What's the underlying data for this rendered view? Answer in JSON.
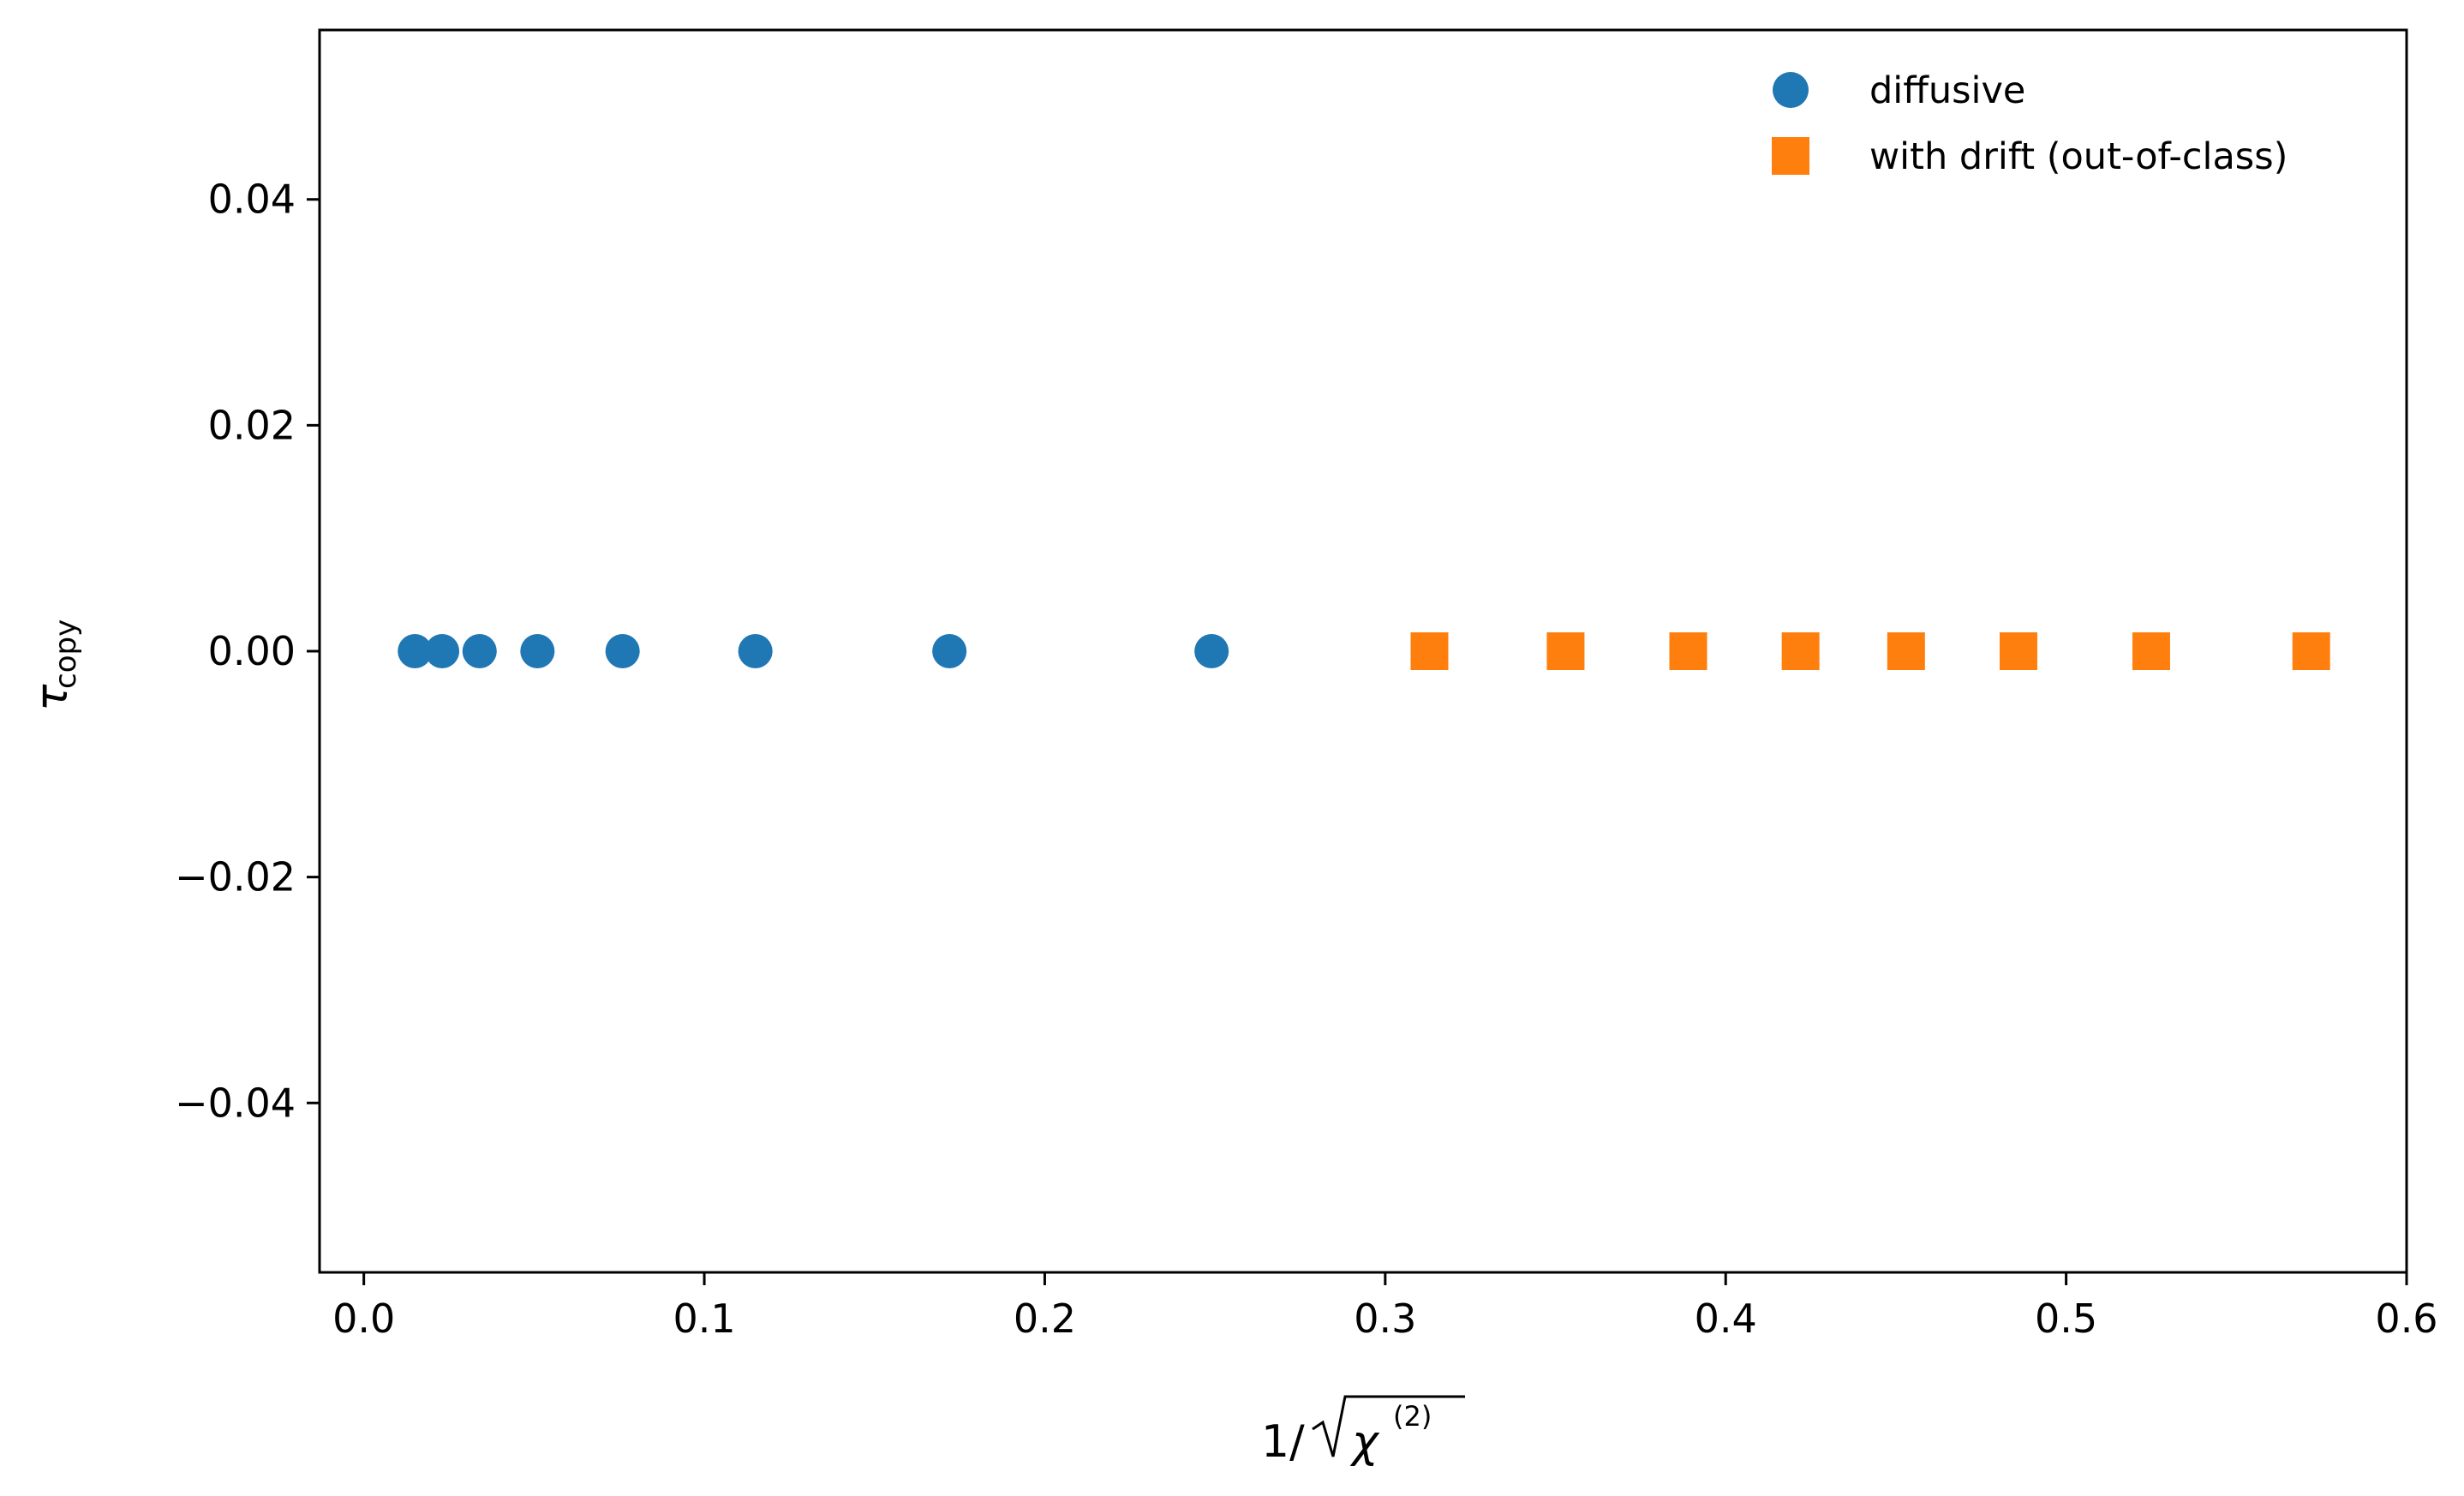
{
  "chart_data": {
    "type": "scatter",
    "title": "",
    "xlabel": "1/√χ⁽²⁾",
    "ylabel": "τ_copy",
    "xlim": [
      -0.013,
      0.6
    ],
    "ylim": [
      -0.055,
      0.055
    ],
    "xticks": [
      0.0,
      0.1,
      0.2,
      0.3,
      0.4,
      0.5,
      0.6
    ],
    "xtick_labels": [
      "0.0",
      "0.1",
      "0.2",
      "0.3",
      "0.4",
      "0.5",
      "0.6"
    ],
    "yticks": [
      -0.04,
      -0.02,
      0.0,
      0.02,
      0.04
    ],
    "ytick_labels": [
      "−0.04",
      "−0.02",
      "0.00",
      "0.02",
      "0.04"
    ],
    "grid": false,
    "legend_position": "top-right",
    "series": [
      {
        "name": "diffusive",
        "marker": "circle",
        "color": "#1f77b4",
        "x": [
          0.015,
          0.023,
          0.034,
          0.051,
          0.076,
          0.115,
          0.172,
          0.249
        ],
        "y": [
          0.0,
          0.0,
          0.0,
          0.0,
          0.0,
          0.0,
          0.0,
          0.0
        ]
      },
      {
        "name": "with drift (out-of-class)",
        "marker": "square",
        "color": "#ff7f0e",
        "x": [
          0.313,
          0.353,
          0.389,
          0.422,
          0.453,
          0.486,
          0.525,
          0.572
        ],
        "y": [
          0.0,
          0.0,
          0.0,
          0.0,
          0.0,
          0.0,
          0.0,
          0.0
        ]
      }
    ]
  }
}
